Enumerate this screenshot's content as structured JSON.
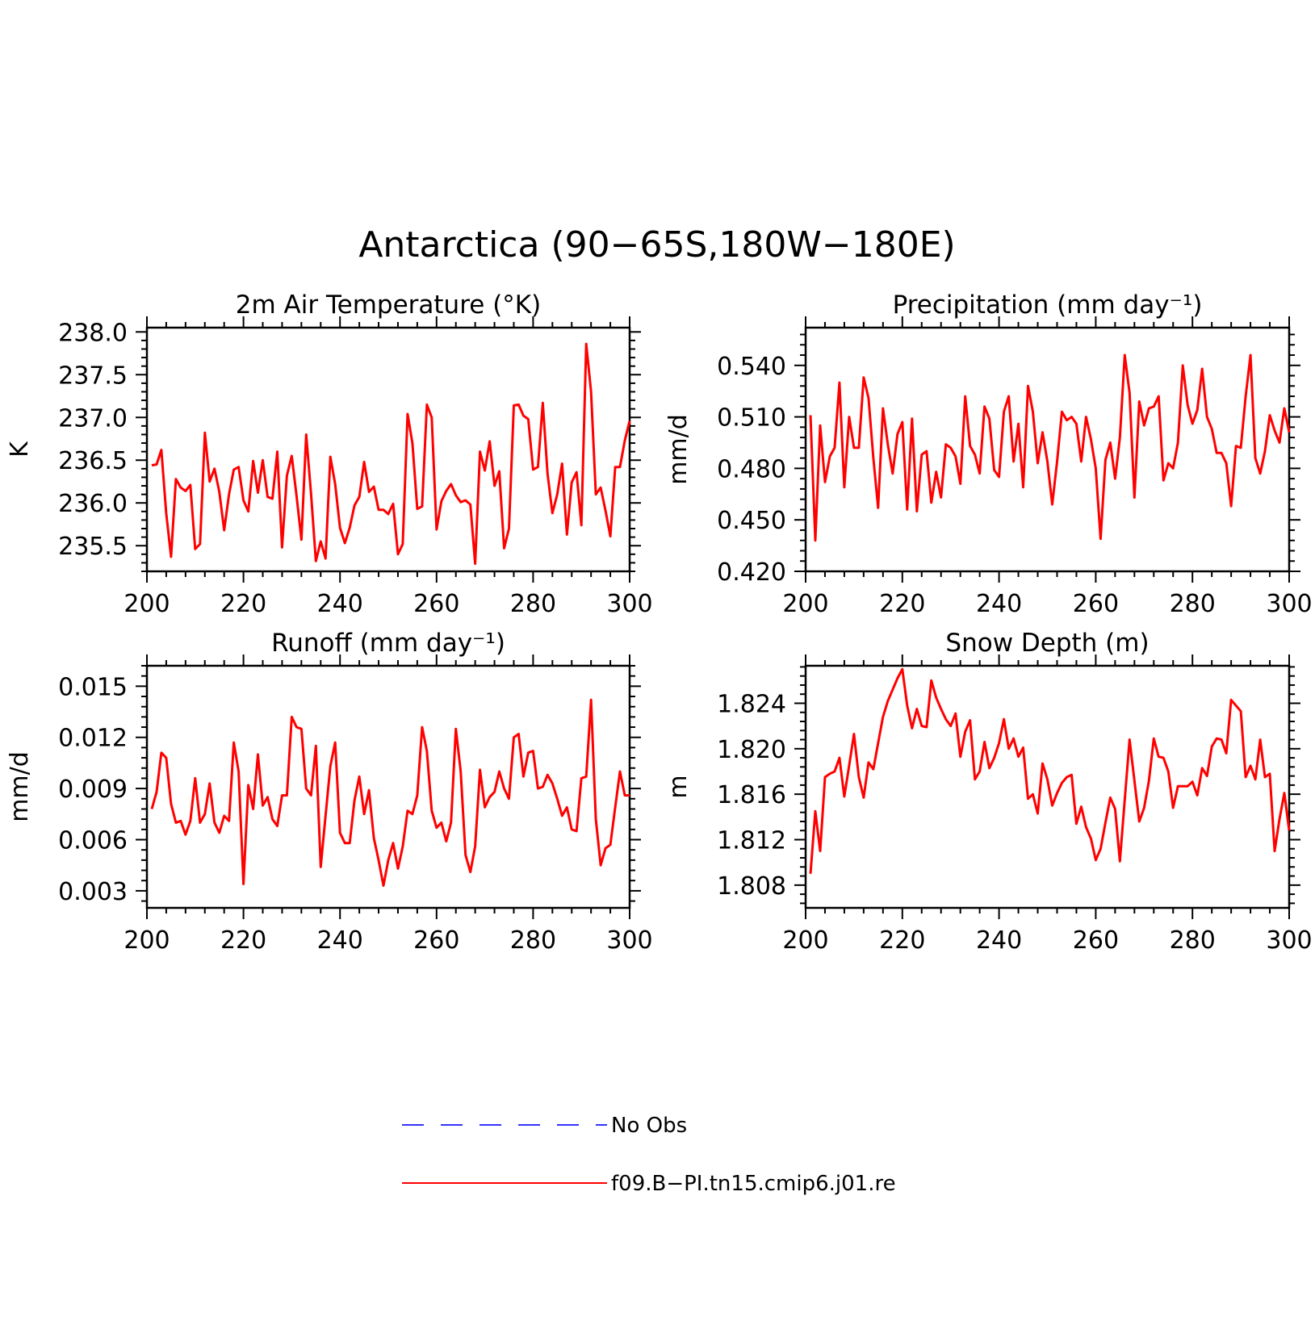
{
  "figure": {
    "title": "Antarctica (90−65S,180W−180E)"
  },
  "legend": {
    "items": [
      {
        "label": "No Obs",
        "color": "#3333ff",
        "style": "dashed"
      },
      {
        "label": "f09.B−PI.tn15.cmip6.j01.re",
        "color": "#ff0000",
        "style": "solid"
      }
    ]
  },
  "series_color": "#ff0000",
  "chart_data": [
    {
      "type": "line",
      "title": "2m Air Temperature (°K)",
      "xlabel": "",
      "ylabel": "K",
      "xlim": [
        200,
        300
      ],
      "ylim": [
        235.2,
        238.05
      ],
      "xticks": [
        200,
        220,
        240,
        260,
        280,
        300
      ],
      "xtick_labels": [
        "200",
        "220",
        "240",
        "260",
        "280",
        "300"
      ],
      "yticks": [
        235.5,
        236.0,
        236.5,
        237.0,
        237.5,
        238.0
      ],
      "ytick_labels": [
        "235.5",
        "236.0",
        "236.5",
        "237.0",
        "237.5",
        "238.0"
      ],
      "x_start": 201,
      "values": [
        236.44,
        236.45,
        236.62,
        235.88,
        235.37,
        236.28,
        236.18,
        236.14,
        236.21,
        235.46,
        235.52,
        236.82,
        236.25,
        236.4,
        236.13,
        235.68,
        236.1,
        236.39,
        236.42,
        236.03,
        235.9,
        236.49,
        236.12,
        236.5,
        236.07,
        236.05,
        236.6,
        235.48,
        236.32,
        236.55,
        236.08,
        235.57,
        236.8,
        236.11,
        235.32,
        235.55,
        235.35,
        236.54,
        236.22,
        235.71,
        235.53,
        235.71,
        235.97,
        236.07,
        236.48,
        236.13,
        236.19,
        235.92,
        235.92,
        235.87,
        235.99,
        235.4,
        235.52,
        237.04,
        236.7,
        235.93,
        235.96,
        237.15,
        237.0,
        235.69,
        236.02,
        236.14,
        236.22,
        236.09,
        236.01,
        236.03,
        235.98,
        235.29,
        236.6,
        236.38,
        236.72,
        236.2,
        236.37,
        235.47,
        235.7,
        237.14,
        237.15,
        237.02,
        236.98,
        236.39,
        236.42,
        237.17,
        236.34,
        235.88,
        236.1,
        236.46,
        235.63,
        236.24,
        236.36,
        235.74,
        237.86,
        237.3,
        236.1,
        236.18,
        235.91,
        235.61,
        236.42,
        236.42,
        236.73,
        236.96
      ]
    },
    {
      "type": "line",
      "title": "Precipitation (mm day⁻¹)",
      "xlabel": "",
      "ylabel": "mm/d",
      "xlim": [
        200,
        300
      ],
      "ylim": [
        0.42,
        0.562
      ],
      "xticks": [
        200,
        220,
        240,
        260,
        280,
        300
      ],
      "xtick_labels": [
        "200",
        "220",
        "240",
        "260",
        "280",
        "300"
      ],
      "yticks": [
        0.42,
        0.45,
        0.48,
        0.51,
        0.54
      ],
      "ytick_labels": [
        "0.420",
        "0.450",
        "0.480",
        "0.510",
        "0.540"
      ],
      "x_start": 201,
      "values": [
        0.511,
        0.438,
        0.505,
        0.472,
        0.487,
        0.492,
        0.53,
        0.469,
        0.51,
        0.492,
        0.492,
        0.533,
        0.521,
        0.486,
        0.457,
        0.515,
        0.494,
        0.477,
        0.5,
        0.507,
        0.456,
        0.509,
        0.455,
        0.488,
        0.49,
        0.46,
        0.478,
        0.463,
        0.494,
        0.492,
        0.487,
        0.471,
        0.522,
        0.493,
        0.488,
        0.477,
        0.516,
        0.509,
        0.479,
        0.475,
        0.513,
        0.522,
        0.484,
        0.506,
        0.469,
        0.528,
        0.513,
        0.483,
        0.501,
        0.484,
        0.459,
        0.484,
        0.513,
        0.508,
        0.51,
        0.506,
        0.484,
        0.51,
        0.497,
        0.48,
        0.439,
        0.485,
        0.495,
        0.474,
        0.498,
        0.546,
        0.524,
        0.463,
        0.519,
        0.505,
        0.515,
        0.516,
        0.522,
        0.473,
        0.483,
        0.48,
        0.495,
        0.54,
        0.517,
        0.506,
        0.514,
        0.538,
        0.51,
        0.503,
        0.489,
        0.489,
        0.483,
        0.458,
        0.493,
        0.492,
        0.522,
        0.546,
        0.486,
        0.477,
        0.49,
        0.511,
        0.502,
        0.495,
        0.515,
        0.501
      ]
    },
    {
      "type": "line",
      "title": "Runoff (mm day⁻¹)",
      "xlabel": "",
      "ylabel": "mm/d",
      "xlim": [
        200,
        300
      ],
      "ylim": [
        0.002,
        0.0162
      ],
      "xticks": [
        200,
        220,
        240,
        260,
        280,
        300
      ],
      "xtick_labels": [
        "200",
        "220",
        "240",
        "260",
        "280",
        "300"
      ],
      "yticks": [
        0.003,
        0.006,
        0.009,
        0.012,
        0.015
      ],
      "ytick_labels": [
        "0.003",
        "0.006",
        "0.009",
        "0.012",
        "0.015"
      ],
      "x_start": 201,
      "values": [
        0.0078,
        0.0088,
        0.0111,
        0.0108,
        0.0081,
        0.007,
        0.0071,
        0.0063,
        0.0071,
        0.0096,
        0.007,
        0.0075,
        0.0093,
        0.007,
        0.0064,
        0.0074,
        0.0071,
        0.0117,
        0.01,
        0.0034,
        0.0092,
        0.0078,
        0.011,
        0.008,
        0.0085,
        0.0072,
        0.0068,
        0.0086,
        0.0086,
        0.0132,
        0.0126,
        0.0125,
        0.009,
        0.0086,
        0.0115,
        0.0044,
        0.0074,
        0.0103,
        0.0117,
        0.0064,
        0.0058,
        0.0058,
        0.0083,
        0.0097,
        0.0075,
        0.0089,
        0.0061,
        0.0048,
        0.0033,
        0.0048,
        0.0058,
        0.0043,
        0.0056,
        0.0077,
        0.0075,
        0.0086,
        0.0126,
        0.0112,
        0.0077,
        0.0067,
        0.007,
        0.0059,
        0.007,
        0.0125,
        0.01,
        0.0051,
        0.0041,
        0.0056,
        0.0101,
        0.0079,
        0.0085,
        0.0088,
        0.01,
        0.009,
        0.0084,
        0.012,
        0.0122,
        0.0097,
        0.0111,
        0.0112,
        0.009,
        0.0091,
        0.0098,
        0.0093,
        0.0084,
        0.0074,
        0.0079,
        0.0066,
        0.0065,
        0.0096,
        0.0097,
        0.0142,
        0.0072,
        0.0045,
        0.0055,
        0.0057,
        0.0079,
        0.01,
        0.0086,
        0.0086
      ]
    },
    {
      "type": "line",
      "title": "Snow Depth (m)",
      "xlabel": "",
      "ylabel": "m",
      "xlim": [
        200,
        300
      ],
      "ylim": [
        1.806,
        1.8273
      ],
      "xticks": [
        200,
        220,
        240,
        260,
        280,
        300
      ],
      "xtick_labels": [
        "200",
        "220",
        "240",
        "260",
        "280",
        "300"
      ],
      "yticks": [
        1.808,
        1.812,
        1.816,
        1.82,
        1.824
      ],
      "ytick_labels": [
        "1.808",
        "1.812",
        "1.816",
        "1.820",
        "1.824"
      ],
      "x_start": 201,
      "values": [
        1.809,
        1.8145,
        1.811,
        1.8175,
        1.8178,
        1.818,
        1.8192,
        1.8158,
        1.8185,
        1.8213,
        1.8175,
        1.8157,
        1.8188,
        1.8182,
        1.8205,
        1.8228,
        1.8242,
        1.8252,
        1.8262,
        1.827,
        1.8238,
        1.8218,
        1.8235,
        1.822,
        1.8219,
        1.826,
        1.8245,
        1.8235,
        1.8226,
        1.822,
        1.8231,
        1.8193,
        1.8215,
        1.8225,
        1.8173,
        1.818,
        1.8206,
        1.8183,
        1.8192,
        1.8205,
        1.8226,
        1.82,
        1.8209,
        1.8193,
        1.8201,
        1.8156,
        1.816,
        1.8143,
        1.8187,
        1.8173,
        1.815,
        1.8161,
        1.817,
        1.8175,
        1.8177,
        1.8134,
        1.8149,
        1.8131,
        1.8121,
        1.8102,
        1.8112,
        1.8135,
        1.8157,
        1.8147,
        1.8101,
        1.8155,
        1.8208,
        1.8172,
        1.8136,
        1.8148,
        1.8172,
        1.8209,
        1.8193,
        1.8192,
        1.818,
        1.8148,
        1.8167,
        1.8167,
        1.8167,
        1.8171,
        1.8159,
        1.8183,
        1.8176,
        1.8202,
        1.8209,
        1.8208,
        1.8196,
        1.8243,
        1.8238,
        1.8233,
        1.8175,
        1.8185,
        1.8173,
        1.8208,
        1.8175,
        1.8178,
        1.811,
        1.8138,
        1.8161,
        1.8128
      ]
    }
  ]
}
